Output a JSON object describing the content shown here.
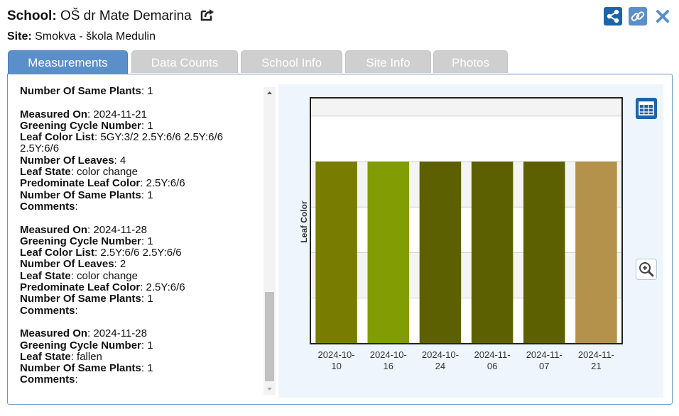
{
  "header": {
    "school_label": "School:",
    "school_name": "OŠ dr Mate Demarina",
    "site_label": "Site:",
    "site_name": "Smokva - škola Medulin"
  },
  "tabs": [
    {
      "label": "Measurements",
      "active": true
    },
    {
      "label": "Data Counts",
      "active": false
    },
    {
      "label": "School Info",
      "active": false
    },
    {
      "label": "Site Info",
      "active": false
    },
    {
      "label": "Photos",
      "active": false
    }
  ],
  "list": {
    "top_row": {
      "label": "Number Of Same Plants",
      "value": ": 1"
    },
    "entries": [
      {
        "rows": [
          {
            "label": "Measured On",
            "value": ": 2024-11-21"
          },
          {
            "label": "Greening Cycle Number",
            "value": ": 1"
          },
          {
            "label": "Leaf Color List",
            "value": ": 5GY:3/2 2.5Y:6/6 2.5Y:6/6 2.5Y:6/6"
          },
          {
            "label": "Number Of Leaves",
            "value": ": 4"
          },
          {
            "label": "Leaf State",
            "value": ": color change"
          },
          {
            "label": "Predominate Leaf Color",
            "value": ": 2.5Y:6/6"
          },
          {
            "label": "Number Of Same Plants",
            "value": ": 1"
          },
          {
            "label": "Comments",
            "value": ":"
          }
        ]
      },
      {
        "rows": [
          {
            "label": "Measured On",
            "value": ": 2024-11-28"
          },
          {
            "label": "Greening Cycle Number",
            "value": ": 1"
          },
          {
            "label": "Leaf Color List",
            "value": ": 2.5Y:6/6 2.5Y:6/6"
          },
          {
            "label": "Number Of Leaves",
            "value": ": 2"
          },
          {
            "label": "Leaf State",
            "value": ": color change"
          },
          {
            "label": "Predominate Leaf Color",
            "value": ": 2.5Y:6/6"
          },
          {
            "label": "Number Of Same Plants",
            "value": ": 1"
          },
          {
            "label": "Comments",
            "value": ":"
          }
        ]
      },
      {
        "rows": [
          {
            "label": "Measured On",
            "value": ": 2024-11-28"
          },
          {
            "label": "Greening Cycle Number",
            "value": ": 1"
          },
          {
            "label": "Leaf State",
            "value": ": fallen"
          },
          {
            "label": "Number Of Same Plants",
            "value": ": 1"
          },
          {
            "label": "Comments",
            "value": ":"
          }
        ]
      }
    ]
  },
  "chart_data": {
    "type": "bar",
    "ylabel": "Leaf Color",
    "xlabel": "",
    "title": "",
    "categories": [
      "2024-10-10",
      "2024-10-16",
      "2024-10-24",
      "2024-11-06",
      "2024-11-07",
      "2024-11-21"
    ],
    "category_lines": [
      [
        "2024-10-",
        "10"
      ],
      [
        "2024-10-",
        "16"
      ],
      [
        "2024-10-",
        "24"
      ],
      [
        "2024-11-",
        "06"
      ],
      [
        "2024-11-",
        "07"
      ],
      [
        "2024-11-",
        "21"
      ]
    ],
    "values": [
      1,
      1,
      1,
      1,
      1,
      1
    ],
    "bar_colors": [
      "#787c00",
      "#829c03",
      "#5d6000",
      "#5d6000",
      "#5d6000",
      "#b4924c"
    ],
    "ylim": [
      0,
      1.35
    ],
    "grid": true,
    "legend": "none"
  },
  "icons": {
    "external": "external-link-icon",
    "share": "share-icon",
    "link": "link-icon",
    "close": "close-icon",
    "table": "table-icon",
    "zoom": "zoom-in-icon"
  },
  "colors": {
    "accent": "#1d64a8",
    "tab_active": "#5a8fca",
    "tab_inactive": "#cfcfcf",
    "close": "#5a8fca"
  }
}
